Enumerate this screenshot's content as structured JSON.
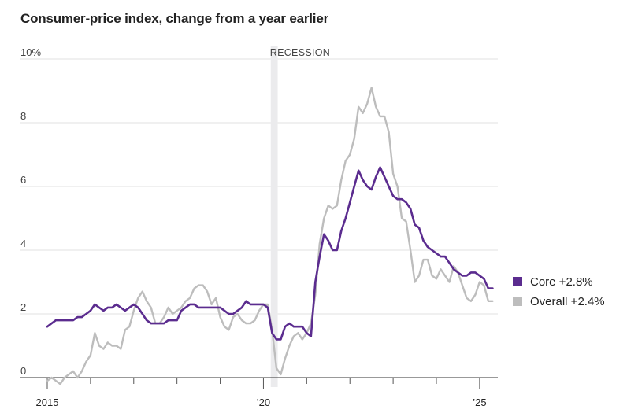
{
  "chart_data": {
    "type": "line",
    "title": "Consumer-price index, change from a year earlier",
    "ylim": [
      0,
      10
    ],
    "yticks": [
      {
        "value": 10,
        "label": "10%"
      },
      {
        "value": 8,
        "label": "8"
      },
      {
        "value": 6,
        "label": "6"
      },
      {
        "value": 4,
        "label": "4"
      },
      {
        "value": 2,
        "label": "2"
      },
      {
        "value": 0,
        "label": "0"
      }
    ],
    "xlim": [
      2015.0,
      2025.33
    ],
    "xticks": [
      {
        "value": 2015,
        "label": "2015"
      },
      {
        "value": 2016,
        "label": ""
      },
      {
        "value": 2017,
        "label": ""
      },
      {
        "value": 2018,
        "label": ""
      },
      {
        "value": 2019,
        "label": ""
      },
      {
        "value": 2020,
        "label": "’20"
      },
      {
        "value": 2021,
        "label": ""
      },
      {
        "value": 2022,
        "label": ""
      },
      {
        "value": 2023,
        "label": ""
      },
      {
        "value": 2024,
        "label": ""
      },
      {
        "value": 2025,
        "label": "’25"
      }
    ],
    "recession": {
      "label": "RECESSION",
      "start": 2020.17,
      "end": 2020.33
    },
    "grid": true,
    "legend_position": "right",
    "series": [
      {
        "name": "Overall",
        "legend_label": "Overall +2.4%",
        "color": "#bdbdbd",
        "points": [
          [
            2015.0,
            -0.1
          ],
          [
            2015.1,
            0.0
          ],
          [
            2015.2,
            -0.1
          ],
          [
            2015.3,
            -0.2
          ],
          [
            2015.4,
            0.0
          ],
          [
            2015.5,
            0.1
          ],
          [
            2015.6,
            0.2
          ],
          [
            2015.7,
            0.0
          ],
          [
            2015.8,
            0.2
          ],
          [
            2015.9,
            0.5
          ],
          [
            2016.0,
            0.7
          ],
          [
            2016.1,
            1.4
          ],
          [
            2016.2,
            1.0
          ],
          [
            2016.3,
            0.9
          ],
          [
            2016.4,
            1.1
          ],
          [
            2016.5,
            1.0
          ],
          [
            2016.6,
            1.0
          ],
          [
            2016.7,
            0.9
          ],
          [
            2016.8,
            1.5
          ],
          [
            2016.9,
            1.6
          ],
          [
            2017.0,
            2.1
          ],
          [
            2017.1,
            2.5
          ],
          [
            2017.2,
            2.7
          ],
          [
            2017.3,
            2.4
          ],
          [
            2017.4,
            2.2
          ],
          [
            2017.5,
            1.7
          ],
          [
            2017.6,
            1.7
          ],
          [
            2017.7,
            1.9
          ],
          [
            2017.8,
            2.2
          ],
          [
            2017.9,
            2.0
          ],
          [
            2018.0,
            2.1
          ],
          [
            2018.1,
            2.2
          ],
          [
            2018.2,
            2.4
          ],
          [
            2018.3,
            2.5
          ],
          [
            2018.4,
            2.8
          ],
          [
            2018.5,
            2.9
          ],
          [
            2018.6,
            2.9
          ],
          [
            2018.7,
            2.7
          ],
          [
            2018.8,
            2.3
          ],
          [
            2018.9,
            2.5
          ],
          [
            2019.0,
            1.9
          ],
          [
            2019.1,
            1.6
          ],
          [
            2019.2,
            1.5
          ],
          [
            2019.3,
            1.9
          ],
          [
            2019.4,
            2.0
          ],
          [
            2019.5,
            1.8
          ],
          [
            2019.6,
            1.7
          ],
          [
            2019.7,
            1.7
          ],
          [
            2019.8,
            1.8
          ],
          [
            2019.9,
            2.1
          ],
          [
            2020.0,
            2.3
          ],
          [
            2020.1,
            2.3
          ],
          [
            2020.2,
            1.5
          ],
          [
            2020.3,
            0.3
          ],
          [
            2020.4,
            0.1
          ],
          [
            2020.5,
            0.6
          ],
          [
            2020.6,
            1.0
          ],
          [
            2020.7,
            1.3
          ],
          [
            2020.8,
            1.4
          ],
          [
            2020.9,
            1.2
          ],
          [
            2021.0,
            1.4
          ],
          [
            2021.1,
            1.7
          ],
          [
            2021.2,
            2.6
          ],
          [
            2021.3,
            4.2
          ],
          [
            2021.4,
            5.0
          ],
          [
            2021.5,
            5.4
          ],
          [
            2021.6,
            5.3
          ],
          [
            2021.7,
            5.4
          ],
          [
            2021.8,
            6.2
          ],
          [
            2021.9,
            6.8
          ],
          [
            2022.0,
            7.0
          ],
          [
            2022.1,
            7.5
          ],
          [
            2022.2,
            8.5
          ],
          [
            2022.3,
            8.3
          ],
          [
            2022.4,
            8.6
          ],
          [
            2022.5,
            9.1
          ],
          [
            2022.6,
            8.5
          ],
          [
            2022.7,
            8.2
          ],
          [
            2022.8,
            8.2
          ],
          [
            2022.9,
            7.7
          ],
          [
            2023.0,
            6.4
          ],
          [
            2023.1,
            6.0
          ],
          [
            2023.2,
            5.0
          ],
          [
            2023.3,
            4.9
          ],
          [
            2023.4,
            4.0
          ],
          [
            2023.5,
            3.0
          ],
          [
            2023.6,
            3.2
          ],
          [
            2023.7,
            3.7
          ],
          [
            2023.8,
            3.7
          ],
          [
            2023.9,
            3.2
          ],
          [
            2024.0,
            3.1
          ],
          [
            2024.1,
            3.4
          ],
          [
            2024.2,
            3.2
          ],
          [
            2024.3,
            3.0
          ],
          [
            2024.4,
            3.5
          ],
          [
            2024.5,
            3.3
          ],
          [
            2024.6,
            2.9
          ],
          [
            2024.7,
            2.5
          ],
          [
            2024.8,
            2.4
          ],
          [
            2024.9,
            2.6
          ],
          [
            2025.0,
            3.0
          ],
          [
            2025.1,
            2.9
          ],
          [
            2025.2,
            2.4
          ],
          [
            2025.3,
            2.4
          ]
        ]
      },
      {
        "name": "Core",
        "legend_label": "Core +2.8%",
        "color": "#5b2c8f",
        "points": [
          [
            2015.0,
            1.6
          ],
          [
            2015.1,
            1.7
          ],
          [
            2015.2,
            1.8
          ],
          [
            2015.3,
            1.8
          ],
          [
            2015.4,
            1.8
          ],
          [
            2015.5,
            1.8
          ],
          [
            2015.6,
            1.8
          ],
          [
            2015.7,
            1.9
          ],
          [
            2015.8,
            1.9
          ],
          [
            2015.9,
            2.0
          ],
          [
            2016.0,
            2.1
          ],
          [
            2016.1,
            2.3
          ],
          [
            2016.2,
            2.2
          ],
          [
            2016.3,
            2.1
          ],
          [
            2016.4,
            2.2
          ],
          [
            2016.5,
            2.2
          ],
          [
            2016.6,
            2.3
          ],
          [
            2016.7,
            2.2
          ],
          [
            2016.8,
            2.1
          ],
          [
            2016.9,
            2.2
          ],
          [
            2017.0,
            2.3
          ],
          [
            2017.1,
            2.2
          ],
          [
            2017.2,
            2.0
          ],
          [
            2017.3,
            1.8
          ],
          [
            2017.4,
            1.7
          ],
          [
            2017.5,
            1.7
          ],
          [
            2017.6,
            1.7
          ],
          [
            2017.7,
            1.7
          ],
          [
            2017.8,
            1.8
          ],
          [
            2017.9,
            1.8
          ],
          [
            2018.0,
            1.8
          ],
          [
            2018.1,
            2.1
          ],
          [
            2018.2,
            2.2
          ],
          [
            2018.3,
            2.3
          ],
          [
            2018.4,
            2.3
          ],
          [
            2018.5,
            2.2
          ],
          [
            2018.6,
            2.2
          ],
          [
            2018.7,
            2.2
          ],
          [
            2018.8,
            2.2
          ],
          [
            2018.9,
            2.2
          ],
          [
            2019.0,
            2.2
          ],
          [
            2019.1,
            2.1
          ],
          [
            2019.2,
            2.0
          ],
          [
            2019.3,
            2.0
          ],
          [
            2019.4,
            2.1
          ],
          [
            2019.5,
            2.2
          ],
          [
            2019.6,
            2.4
          ],
          [
            2019.7,
            2.3
          ],
          [
            2019.8,
            2.3
          ],
          [
            2019.9,
            2.3
          ],
          [
            2020.0,
            2.3
          ],
          [
            2020.1,
            2.2
          ],
          [
            2020.2,
            1.4
          ],
          [
            2020.3,
            1.2
          ],
          [
            2020.4,
            1.2
          ],
          [
            2020.5,
            1.6
          ],
          [
            2020.6,
            1.7
          ],
          [
            2020.7,
            1.6
          ],
          [
            2020.8,
            1.6
          ],
          [
            2020.9,
            1.6
          ],
          [
            2021.0,
            1.4
          ],
          [
            2021.1,
            1.3
          ],
          [
            2021.2,
            3.0
          ],
          [
            2021.3,
            3.8
          ],
          [
            2021.4,
            4.5
          ],
          [
            2021.5,
            4.3
          ],
          [
            2021.6,
            4.0
          ],
          [
            2021.7,
            4.0
          ],
          [
            2021.8,
            4.6
          ],
          [
            2021.9,
            5.0
          ],
          [
            2022.0,
            5.5
          ],
          [
            2022.1,
            6.0
          ],
          [
            2022.2,
            6.5
          ],
          [
            2022.3,
            6.2
          ],
          [
            2022.4,
            6.0
          ],
          [
            2022.5,
            5.9
          ],
          [
            2022.6,
            6.3
          ],
          [
            2022.7,
            6.6
          ],
          [
            2022.8,
            6.3
          ],
          [
            2022.9,
            6.0
          ],
          [
            2023.0,
            5.7
          ],
          [
            2023.1,
            5.6
          ],
          [
            2023.2,
            5.6
          ],
          [
            2023.3,
            5.5
          ],
          [
            2023.4,
            5.3
          ],
          [
            2023.5,
            4.8
          ],
          [
            2023.6,
            4.7
          ],
          [
            2023.7,
            4.3
          ],
          [
            2023.8,
            4.1
          ],
          [
            2023.9,
            4.0
          ],
          [
            2024.0,
            3.9
          ],
          [
            2024.1,
            3.8
          ],
          [
            2024.2,
            3.8
          ],
          [
            2024.3,
            3.6
          ],
          [
            2024.4,
            3.4
          ],
          [
            2024.5,
            3.3
          ],
          [
            2024.6,
            3.2
          ],
          [
            2024.7,
            3.2
          ],
          [
            2024.8,
            3.3
          ],
          [
            2024.9,
            3.3
          ],
          [
            2025.0,
            3.2
          ],
          [
            2025.1,
            3.1
          ],
          [
            2025.2,
            2.8
          ],
          [
            2025.3,
            2.8
          ]
        ]
      }
    ]
  }
}
